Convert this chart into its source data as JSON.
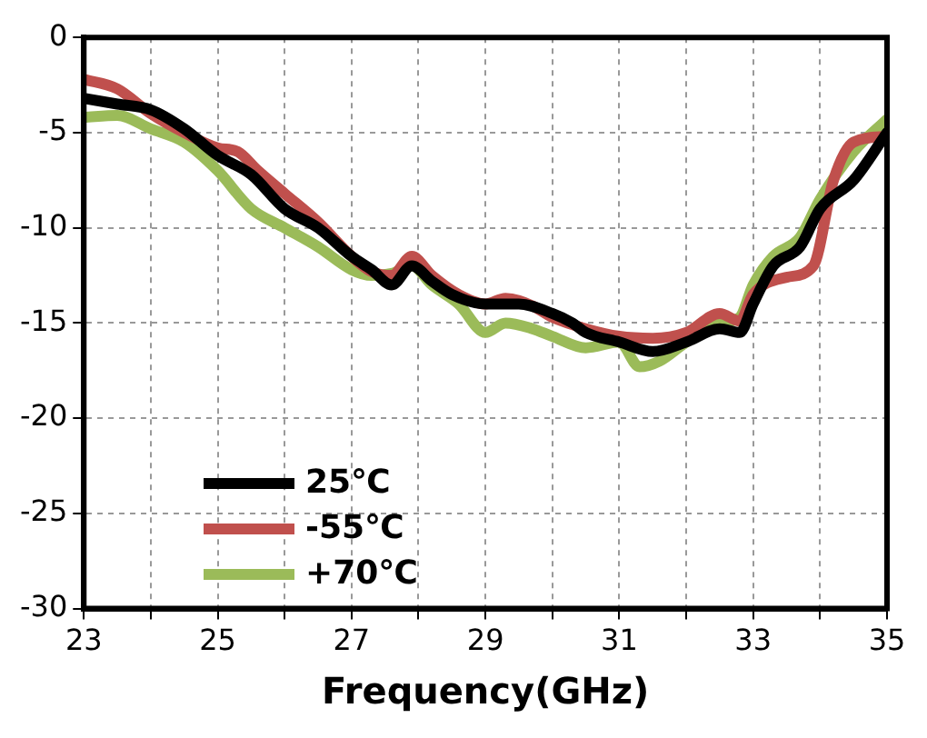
{
  "chart_data": {
    "type": "line",
    "xlabel": "Frequency(GHz)",
    "xlim": [
      23,
      35
    ],
    "xticks": [
      23,
      {
        "value": 24,
        "label": null
      },
      25,
      {
        "value": 26,
        "label": null
      },
      27,
      {
        "value": 28,
        "label": null
      },
      29,
      {
        "value": 30,
        "label": null
      },
      31,
      {
        "value": 32,
        "label": null
      },
      33,
      {
        "value": 34,
        "label": null
      },
      35
    ],
    "ylim": [
      -30,
      0
    ],
    "yticks": [
      -30,
      -25,
      -20,
      -15,
      -10,
      -5,
      0
    ],
    "grid": true,
    "legend": "bottom left",
    "marker": "none",
    "line_style": "solid",
    "series": [
      {
        "name": "25℃",
        "color": "#000000",
        "x": [
          23,
          23.5,
          24,
          24.5,
          25,
          25.5,
          26,
          26.5,
          27,
          27.3,
          27.6,
          27.9,
          28.2,
          28.5,
          29,
          29.5,
          30,
          30.3,
          30.5,
          31,
          31.5,
          32,
          32.5,
          32.8,
          33,
          33.3,
          33.7,
          34,
          34.5,
          35
        ],
        "values": [
          -3.2,
          -3.5,
          -3.8,
          -4.8,
          -6.2,
          -7.2,
          -9,
          -10,
          -11.5,
          -12.2,
          -13,
          -12,
          -12.8,
          -13.5,
          -14,
          -14,
          -14.5,
          -15,
          -15.5,
          -16,
          -16.5,
          -16,
          -15.3,
          -15.5,
          -14,
          -12,
          -11,
          -9,
          -7.5,
          -5
        ]
      },
      {
        "name": "-55℃",
        "color": "#c0504d",
        "x": [
          23,
          23.5,
          24,
          24.5,
          25,
          25.3,
          25.6,
          26,
          26.5,
          27,
          27.3,
          27.6,
          27.9,
          28.2,
          28.6,
          29,
          29.3,
          29.7,
          30,
          30.5,
          31,
          31.5,
          32,
          32.5,
          32.8,
          33,
          33.5,
          33.9,
          34.2,
          34.5,
          35
        ],
        "values": [
          -2.2,
          -2.7,
          -4,
          -5,
          -5.8,
          -6,
          -7,
          -8.2,
          -9.7,
          -11.5,
          -12.3,
          -12.5,
          -11.5,
          -12.5,
          -13.5,
          -14,
          -13.7,
          -14.1,
          -14.7,
          -15.3,
          -15.7,
          -15.8,
          -15.5,
          -14.5,
          -14.9,
          -13.5,
          -12.6,
          -12,
          -7.5,
          -5.5,
          -5.2
        ]
      },
      {
        "name": "+70℃",
        "color": "#9bbb59",
        "x": [
          23,
          23.5,
          24,
          24.5,
          25,
          25.5,
          26,
          26.5,
          27,
          27.3,
          27.6,
          27.9,
          28.2,
          28.6,
          29,
          29.3,
          29.7,
          30,
          30.5,
          31,
          31.3,
          31.6,
          32,
          32.5,
          32.8,
          33,
          33.3,
          33.7,
          34,
          34.5,
          35
        ],
        "values": [
          -4.2,
          -4.1,
          -4.8,
          -5.5,
          -7,
          -9,
          -10,
          -11,
          -12.2,
          -12.5,
          -12.4,
          -12,
          -13,
          -14,
          -15.5,
          -15,
          -15.3,
          -15.7,
          -16.3,
          -16,
          -17.3,
          -17,
          -16,
          -15,
          -14.7,
          -13,
          -11.5,
          -10.5,
          -8.5,
          -6,
          -4.3
        ]
      }
    ]
  }
}
